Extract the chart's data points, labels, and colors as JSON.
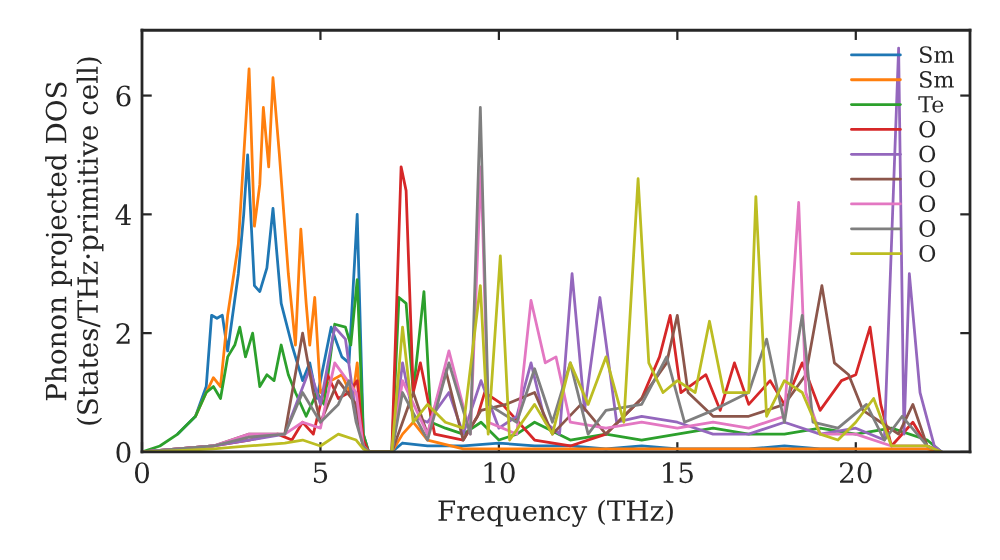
{
  "chart_data": {
    "type": "line",
    "xlabel": "Frequency (THz)",
    "ylabel": "Phonon projected DOS\n(States/THz·primitive cell)",
    "xlim": [
      0,
      23.2
    ],
    "xticks": [
      0,
      5,
      10,
      15,
      20
    ],
    "ylim": [
      0,
      7.1
    ],
    "yticks": [
      0,
      2,
      4,
      6
    ],
    "grid": false,
    "legend": "top right",
    "marker": "none",
    "line_style": "solid",
    "series": [
      {
        "name": "Sm",
        "color": "#1f77b4",
        "x": [
          1,
          1.5,
          1.8,
          1.95,
          2.1,
          2.25,
          2.4,
          2.7,
          2.85,
          2.96,
          3.15,
          3.3,
          3.5,
          3.67,
          3.9,
          4.2,
          4.5,
          4.7,
          4.9,
          5.3,
          5.6,
          5.8,
          6.03,
          6.2,
          6.35,
          7.0,
          7.3,
          8,
          9,
          10,
          11,
          12,
          13,
          14,
          15,
          16,
          17,
          18,
          19,
          20
        ],
        "values": [
          0.3,
          0.6,
          1.1,
          2.3,
          2.25,
          2.3,
          1.7,
          3.0,
          4.0,
          5.0,
          2.8,
          2.7,
          3.1,
          4.1,
          2.5,
          1.8,
          1.2,
          1.5,
          0.9,
          2.1,
          1.6,
          1.5,
          4.0,
          0.3,
          0,
          0,
          0.15,
          0.1,
          0.1,
          0.15,
          0.1,
          0.1,
          0.05,
          0.1,
          0.05,
          0.05,
          0.05,
          0.1,
          0.05,
          0.05
        ]
      },
      {
        "name": "Sm",
        "color": "#ff7f0e",
        "x": [
          1.5,
          1.8,
          2.0,
          2.2,
          2.4,
          2.7,
          3.0,
          3.15,
          3.3,
          3.4,
          3.55,
          3.67,
          3.85,
          4.1,
          4.3,
          4.45,
          4.6,
          4.7,
          4.84,
          5.0,
          5.3,
          5.6,
          5.9,
          6.03,
          6.2,
          6.35,
          7.0,
          7.3,
          7.6,
          8,
          9,
          10,
          11,
          12,
          14,
          16,
          18,
          20,
          22,
          22.4
        ],
        "values": [
          0.6,
          1.0,
          1.25,
          1.1,
          2.3,
          3.5,
          6.45,
          3.8,
          4.5,
          5.8,
          4.8,
          6.3,
          5.0,
          3.0,
          1.8,
          3.75,
          2.5,
          1.8,
          2.6,
          1.0,
          1.2,
          1.3,
          0.9,
          1.5,
          0.2,
          0,
          0,
          0.3,
          0.5,
          0.2,
          0.05,
          0.05,
          0.05,
          0.05,
          0.05,
          0.05,
          0.05,
          0.05,
          0.05,
          0
        ]
      },
      {
        "name": "Te",
        "color": "#2ca02c",
        "x": [
          0,
          0.5,
          1,
          1.5,
          1.8,
          2.0,
          2.2,
          2.4,
          2.6,
          2.74,
          2.9,
          3.1,
          3.3,
          3.5,
          3.7,
          3.9,
          4.1,
          4.3,
          4.6,
          4.9,
          5.1,
          5.4,
          5.7,
          5.85,
          6.03,
          6.2,
          6.35,
          7.0,
          7.2,
          7.4,
          7.6,
          7.9,
          8.1,
          8.5,
          9,
          9.5,
          10,
          10.5,
          11,
          12,
          13,
          14,
          15,
          16,
          17,
          18,
          19,
          20,
          21,
          22,
          22.4
        ],
        "values": [
          0,
          0.1,
          0.3,
          0.6,
          1.0,
          1.1,
          0.9,
          1.6,
          1.8,
          2.1,
          1.6,
          2.0,
          1.1,
          1.3,
          1.2,
          1.8,
          1.3,
          1.0,
          0.6,
          1.0,
          0.8,
          2.15,
          2.1,
          1.8,
          2.9,
          0.3,
          0,
          0,
          2.6,
          2.5,
          1.0,
          2.7,
          0.5,
          0.4,
          0.3,
          0.5,
          0.2,
          0.3,
          0.5,
          0.2,
          0.3,
          0.2,
          0.3,
          0.4,
          0.3,
          0.3,
          0.4,
          0.3,
          0.4,
          0.2,
          0
        ]
      },
      {
        "name": "O",
        "color": "#d62728",
        "x": [
          0,
          1,
          2,
          3,
          3.8,
          4.2,
          4.5,
          4.8,
          5.2,
          5.5,
          5.8,
          6.03,
          6.2,
          6.35,
          7.0,
          7.26,
          7.4,
          7.6,
          7.8,
          8.2,
          9.0,
          9.4,
          9.6,
          10.1,
          11,
          12,
          13,
          14,
          14.5,
          14.8,
          15.1,
          15.8,
          16.2,
          16.6,
          17,
          17.6,
          18.0,
          18.5,
          19,
          19.6,
          20,
          20.4,
          20.7,
          21,
          21.6,
          22,
          22.4
        ],
        "values": [
          0,
          0.05,
          0.1,
          0.2,
          0.3,
          0.2,
          0.5,
          0.3,
          1.3,
          0.9,
          1.0,
          1.2,
          0.2,
          0,
          0,
          4.8,
          4.4,
          1.0,
          1.5,
          0.3,
          0.2,
          0.6,
          1.0,
          0.8,
          0.2,
          0.1,
          0.3,
          0.9,
          1.6,
          2.3,
          1.0,
          1.3,
          0.7,
          1.5,
          0.8,
          1.2,
          0.8,
          1.5,
          0.7,
          1.2,
          1.3,
          2.1,
          0.8,
          0.1,
          0.5,
          0.1,
          0
        ]
      },
      {
        "name": "O",
        "color": "#9467bd",
        "x": [
          0,
          1,
          2,
          3,
          4,
          4.7,
          5.0,
          5.4,
          5.7,
          6.0,
          6.2,
          6.35,
          7.0,
          7.3,
          7.6,
          8.0,
          8.6,
          9.0,
          9.5,
          10,
          10.5,
          10.9,
          11.3,
          11.7,
          12.05,
          12.4,
          12.83,
          13.3,
          14,
          15,
          16,
          17,
          18,
          19,
          20,
          20.8,
          21.2,
          21.35,
          21.5,
          21.8,
          22.2,
          22.4
        ],
        "values": [
          0,
          0.05,
          0.1,
          0.2,
          0.3,
          1.4,
          0.8,
          2.1,
          1.9,
          0.6,
          0.1,
          0,
          0,
          1.5,
          0.6,
          0.5,
          1.0,
          0.3,
          1.2,
          0.4,
          0.6,
          1.5,
          0.5,
          0.3,
          3.0,
          0.7,
          2.6,
          0.5,
          0.6,
          0.5,
          0.3,
          0.3,
          0.5,
          0.3,
          0.4,
          0.2,
          6.8,
          0.3,
          3.0,
          1.0,
          0.1,
          0
        ]
      },
      {
        "name": "O",
        "color": "#8c564b",
        "x": [
          0,
          1,
          2,
          3,
          4,
          4.5,
          4.8,
          5.0,
          5.5,
          6.0,
          6.2,
          6.35,
          7.0,
          7.3,
          7.6,
          8.0,
          8.5,
          9.0,
          9.5,
          10.2,
          11.0,
          11.5,
          12.3,
          13,
          14,
          14.7,
          15.0,
          15.3,
          16,
          17,
          18,
          18.6,
          19.05,
          19.4,
          19.8,
          20.2,
          20.7,
          21.2,
          21.6,
          22,
          22.4
        ],
        "values": [
          0,
          0.05,
          0.1,
          0.3,
          0.3,
          2.0,
          1.0,
          0.5,
          1.2,
          0.8,
          0.1,
          0,
          0,
          0.5,
          1.0,
          0.3,
          1.4,
          0.2,
          0.7,
          0.8,
          1.0,
          0.3,
          0.8,
          0.3,
          0.9,
          1.5,
          2.3,
          1.0,
          0.6,
          0.6,
          0.8,
          1.3,
          2.8,
          1.5,
          1.3,
          0.7,
          0.5,
          0.3,
          0.8,
          0.1,
          0
        ]
      },
      {
        "name": "O",
        "color": "#e377c2",
        "x": [
          0,
          1,
          2,
          3,
          4,
          4.5,
          5.0,
          5.4,
          6.0,
          6.2,
          6.35,
          7.0,
          7.3,
          8.0,
          8.6,
          9.2,
          9.5,
          9.7,
          10.5,
          10.9,
          11.3,
          11.6,
          12,
          13,
          14,
          15,
          16,
          17,
          18,
          18.4,
          18.6,
          19,
          20,
          21,
          22,
          22.4
        ],
        "values": [
          0,
          0.05,
          0.1,
          0.3,
          0.3,
          0.5,
          0.4,
          1.5,
          1.0,
          0.1,
          0,
          0,
          1.2,
          0.3,
          1.7,
          0.3,
          4.8,
          0.5,
          0.3,
          2.55,
          1.5,
          1.6,
          0.5,
          0.4,
          0.5,
          0.4,
          0.5,
          0.4,
          0.6,
          4.2,
          1.0,
          0.3,
          0.3,
          0.1,
          0.1,
          0
        ]
      },
      {
        "name": "O",
        "color": "#7f7f7f",
        "x": [
          0,
          1,
          2,
          3,
          4,
          4.5,
          5.0,
          5.5,
          5.8,
          6.0,
          6.2,
          6.35,
          7.0,
          7.3,
          8.0,
          8.6,
          9.2,
          9.48,
          9.7,
          10.5,
          11,
          11.5,
          12.0,
          12.5,
          13,
          14,
          14.7,
          15.2,
          16,
          17,
          17.5,
          18.0,
          18.5,
          18.8,
          19.5,
          20.3,
          20.8,
          21.3,
          22,
          22.4
        ],
        "values": [
          0,
          0.05,
          0.1,
          0.25,
          0.3,
          1.0,
          0.5,
          0.8,
          1.2,
          0.5,
          0.1,
          0,
          0,
          1.0,
          0.2,
          1.5,
          0.3,
          5.8,
          0.8,
          0.5,
          1.4,
          0.5,
          1.5,
          0.3,
          0.7,
          0.8,
          1.6,
          0.5,
          0.7,
          1.0,
          1.9,
          0.5,
          2.3,
          0.5,
          0.4,
          0.8,
          0.2,
          0.6,
          0.1,
          0
        ]
      },
      {
        "name": "O",
        "color": "#bcbd22",
        "x": [
          0,
          1,
          2,
          3,
          4,
          4.5,
          5.0,
          5.5,
          6.0,
          6.2,
          6.35,
          7.0,
          7.3,
          7.6,
          8.0,
          8.5,
          9.0,
          9.48,
          9.7,
          10.04,
          10.3,
          11,
          11.5,
          12,
          12.5,
          13,
          13.5,
          13.9,
          14.2,
          14.6,
          15,
          15.5,
          15.9,
          16.3,
          17,
          17.2,
          17.5,
          18,
          18.5,
          19,
          19.5,
          20,
          20.5,
          21,
          22,
          22.4
        ],
        "values": [
          0,
          0.02,
          0.05,
          0.1,
          0.15,
          0.2,
          0.1,
          0.3,
          0.2,
          0.05,
          0,
          0,
          2.1,
          0.5,
          0.8,
          0.5,
          0.4,
          2.8,
          0.3,
          3.3,
          0.2,
          0.8,
          0.3,
          1.5,
          0.8,
          1.6,
          0.5,
          4.6,
          1.5,
          1.0,
          1.2,
          1.0,
          2.2,
          1.0,
          1.0,
          4.3,
          0.6,
          1.2,
          1.0,
          0.3,
          0.2,
          0.5,
          0.9,
          0.1,
          0.1,
          0
        ]
      }
    ]
  }
}
